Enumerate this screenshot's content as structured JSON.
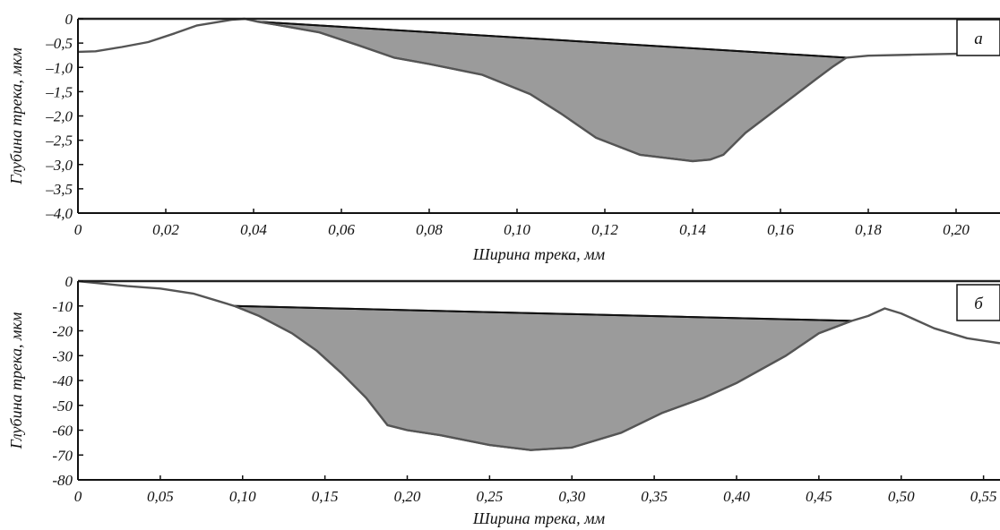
{
  "chart_data": [
    {
      "type": "area",
      "panel_label": "а",
      "xlabel": "Ширина трека, мм",
      "ylabel": "Глубина трека, мкм",
      "xlim": [
        0,
        0.21
      ],
      "ylim": [
        -4.0,
        0
      ],
      "x_ticks": [
        0,
        0.02,
        0.04,
        0.06,
        0.08,
        0.1,
        0.12,
        0.14,
        0.16,
        0.18,
        0.2
      ],
      "x_tick_labels": [
        "0",
        "0,02",
        "0,04",
        "0,06",
        "0,08",
        "0,10",
        "0,12",
        "0,14",
        "0,16",
        "0,18",
        "0,20"
      ],
      "y_ticks": [
        0,
        -0.5,
        -1.0,
        -1.5,
        -2.0,
        -2.5,
        -3.0,
        -3.5,
        -4.0
      ],
      "y_tick_labels": [
        "0",
        "–0,5",
        "–1,0",
        "–1,5",
        "–2,0",
        "–2,5",
        "–3,0",
        "–3,5",
        "–4,0"
      ],
      "profile": {
        "x": [
          0,
          0.004,
          0.01,
          0.016,
          0.022,
          0.027,
          0.031,
          0.035,
          0.038,
          0.041,
          0.045,
          0.055,
          0.064,
          0.072,
          0.08,
          0.092,
          0.103,
          0.11,
          0.118,
          0.128,
          0.14,
          0.144,
          0.147,
          0.152,
          0.16,
          0.168,
          0.172,
          0.175,
          0.18,
          0.19,
          0.2,
          0.21
        ],
        "y": [
          -0.68,
          -0.67,
          -0.58,
          -0.48,
          -0.3,
          -0.14,
          -0.08,
          -0.02,
          0.0,
          -0.06,
          -0.12,
          -0.28,
          -0.55,
          -0.8,
          -0.93,
          -1.15,
          -1.55,
          -1.95,
          -2.45,
          -2.8,
          -2.93,
          -2.9,
          -2.8,
          -2.35,
          -1.8,
          -1.25,
          -0.98,
          -0.8,
          -0.76,
          -0.74,
          -0.72,
          -0.7
        ]
      },
      "chord": {
        "x": [
          0.041,
          0.175
        ],
        "y": [
          -0.06,
          -0.8
        ]
      },
      "wear_region": {
        "x": [
          0.041,
          0.045,
          0.055,
          0.064,
          0.072,
          0.08,
          0.092,
          0.103,
          0.11,
          0.118,
          0.128,
          0.14,
          0.144,
          0.147,
          0.152,
          0.16,
          0.168,
          0.172,
          0.175
        ],
        "y": [
          -0.06,
          -0.12,
          -0.28,
          -0.55,
          -0.8,
          -0.93,
          -1.15,
          -1.55,
          -1.95,
          -2.45,
          -2.8,
          -2.93,
          -2.9,
          -2.8,
          -2.35,
          -1.8,
          -1.25,
          -0.98,
          -0.8
        ]
      }
    },
    {
      "type": "area",
      "panel_label": "б",
      "xlabel": "Ширина трека, мм",
      "ylabel": "Глубина трека, мкм",
      "xlim": [
        0,
        0.56
      ],
      "ylim": [
        -80,
        0
      ],
      "x_ticks": [
        0,
        0.05,
        0.1,
        0.15,
        0.2,
        0.25,
        0.3,
        0.35,
        0.4,
        0.45,
        0.5,
        0.55
      ],
      "x_tick_labels": [
        "0",
        "0,05",
        "0,10",
        "0,15",
        "0,20",
        "0,25",
        "0,30",
        "0,35",
        "0,40",
        "0,45",
        "0,50",
        "0,55"
      ],
      "y_ticks": [
        0,
        -10,
        -20,
        -30,
        -40,
        -50,
        -60,
        -70,
        -80
      ],
      "y_tick_labels": [
        "0",
        "-10",
        "-20",
        "-30",
        "-40",
        "-50",
        "-60",
        "-70",
        "-80"
      ],
      "profile": {
        "x": [
          0,
          0.015,
          0.03,
          0.05,
          0.07,
          0.085,
          0.095,
          0.11,
          0.13,
          0.145,
          0.16,
          0.175,
          0.188,
          0.2,
          0.22,
          0.25,
          0.275,
          0.3,
          0.31,
          0.33,
          0.355,
          0.38,
          0.4,
          0.43,
          0.45,
          0.47,
          0.48,
          0.49,
          0.5,
          0.52,
          0.54,
          0.56
        ],
        "y": [
          0,
          -1,
          -2,
          -3,
          -5,
          -8,
          -10,
          -14,
          -21,
          -28,
          -37,
          -47,
          -58,
          -60,
          -62,
          -66,
          -68,
          -67,
          -65,
          -61,
          -53,
          -47,
          -41,
          -30,
          -21,
          -16,
          -14,
          -11,
          -13,
          -19,
          -23,
          -25
        ]
      },
      "chord": {
        "x": [
          0.095,
          0.47
        ],
        "y": [
          -10,
          -16
        ]
      },
      "wear_region": {
        "x": [
          0.095,
          0.11,
          0.13,
          0.145,
          0.16,
          0.175,
          0.188,
          0.2,
          0.22,
          0.25,
          0.275,
          0.3,
          0.31,
          0.33,
          0.355,
          0.38,
          0.4,
          0.43,
          0.45,
          0.47
        ],
        "y": [
          -10,
          -14,
          -21,
          -28,
          -37,
          -47,
          -58,
          -60,
          -62,
          -66,
          -68,
          -67,
          -65,
          -61,
          -53,
          -47,
          -41,
          -30,
          -21,
          -16
        ]
      }
    }
  ]
}
